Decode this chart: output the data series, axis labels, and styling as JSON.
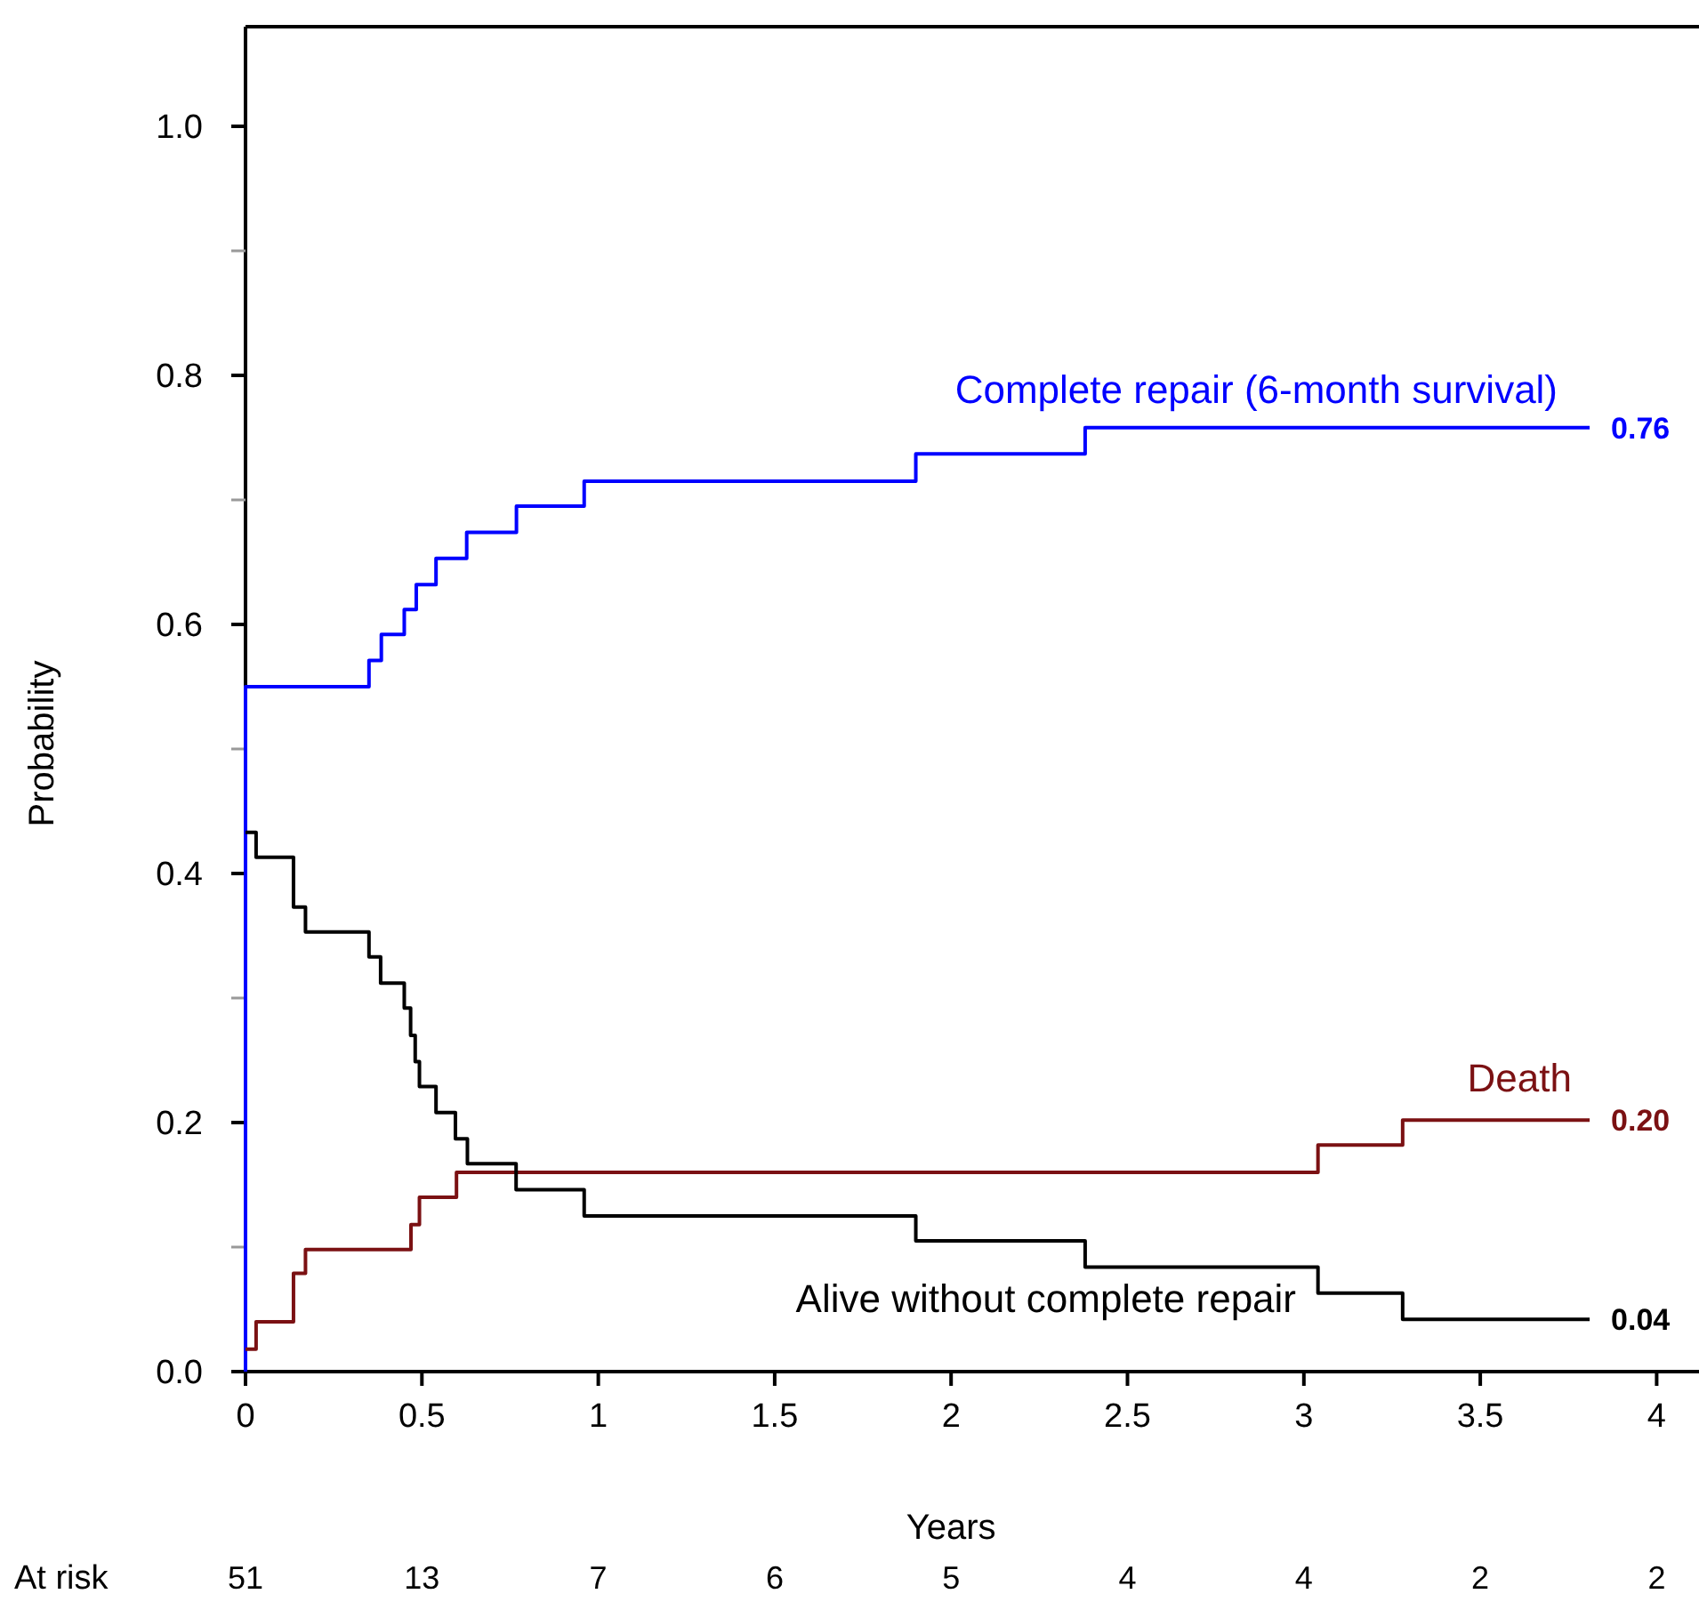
{
  "chart_data": {
    "type": "step",
    "xlabel": "Years",
    "ylabel": "Probability",
    "xlim": [
      0,
      4.12
    ],
    "ylim": [
      0,
      1.08
    ],
    "xticks": [
      0,
      0.5,
      1,
      1.5,
      2,
      2.5,
      3,
      3.5,
      4
    ],
    "yticks": [
      {
        "value": 0,
        "label": "0.0"
      },
      {
        "value": 0.1,
        "label": null
      },
      {
        "value": 0.2,
        "label": "0.2"
      },
      {
        "value": 0.3,
        "label": null
      },
      {
        "value": 0.4,
        "label": "0.4"
      },
      {
        "value": 0.5,
        "label": null
      },
      {
        "value": 0.6,
        "label": "0.6"
      },
      {
        "value": 0.7,
        "label": null
      },
      {
        "value": 0.8,
        "label": "0.8"
      },
      {
        "value": 0.9,
        "label": null
      },
      {
        "value": 1,
        "label": "1.0"
      }
    ],
    "grid": false,
    "line_style": "solid",
    "marker": "none",
    "series": [
      {
        "name": "Complete repair (6-month survival)",
        "color": "#0000ff",
        "x": [
          0,
          0,
          0.35,
          0.385,
          0.45,
          0.484,
          0.54,
          0.627,
          0.768,
          0.96,
          1.9,
          2.38,
          3.81
        ],
        "values": [
          0,
          0.55,
          0.571,
          0.592,
          0.612,
          0.632,
          0.653,
          0.674,
          0.695,
          0.715,
          0.737,
          0.758,
          0.758
        ]
      },
      {
        "name": "Death",
        "color": "#7b1113",
        "x": [
          0,
          0.03,
          0.136,
          0.17,
          0.469,
          0.493,
          0.598,
          3.04,
          3.28,
          3.81
        ],
        "values": [
          0.018,
          0.04,
          0.079,
          0.098,
          0.118,
          0.14,
          0.16,
          0.182,
          0.202,
          0.202
        ]
      },
      {
        "name": "Alive without complete repair",
        "color": "#000000",
        "x": [
          0,
          0.03,
          0.136,
          0.17,
          0.35,
          0.383,
          0.45,
          0.468,
          0.481,
          0.493,
          0.54,
          0.595,
          0.629,
          0.767,
          0.96,
          1.9,
          2.38,
          3.04,
          3.28,
          3.81
        ],
        "values": [
          0.433,
          0.413,
          0.373,
          0.353,
          0.333,
          0.312,
          0.292,
          0.27,
          0.249,
          0.229,
          0.208,
          0.187,
          0.167,
          0.146,
          0.125,
          0.105,
          0.084,
          0.063,
          0.042,
          0.042
        ]
      }
    ],
    "annotations": [
      "0.76",
      "0.20",
      "0.04",
      "At risk",
      "51",
      "13",
      "7",
      "6",
      "5",
      "4",
      "4",
      "2",
      "2"
    ]
  }
}
